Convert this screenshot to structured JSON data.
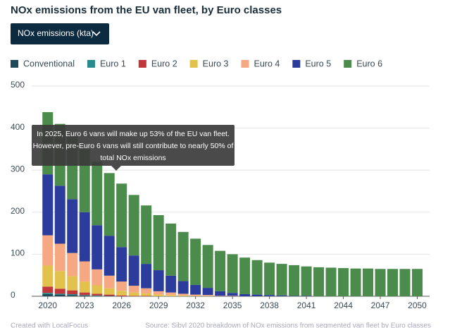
{
  "ui": {
    "title": "NOx emissions from the EU van fleet, by Euro classes",
    "dropdown": "NOx emissions (kta)"
  },
  "chart_data": {
    "type": "bar",
    "stacked": true,
    "x": [
      2020,
      2021,
      2022,
      2023,
      2024,
      2025,
      2026,
      2027,
      2028,
      2029,
      2030,
      2031,
      2032,
      2033,
      2034,
      2035,
      2036,
      2037,
      2038,
      2039,
      2040,
      2041,
      2042,
      2043,
      2044,
      2045,
      2046,
      2047,
      2048,
      2049,
      2050
    ],
    "xlim": [
      2018.7,
      2051
    ],
    "xticks": [
      2020,
      2023,
      2026,
      2029,
      2032,
      2035,
      2038,
      2041,
      2044,
      2047,
      2050
    ],
    "ylim": [
      0,
      500
    ],
    "yticks": [
      0,
      100,
      200,
      300,
      400,
      500
    ],
    "grid": true,
    "legend": "top-left",
    "annotation": [
      "In 2025, Euro 6 vans will make up 53% of the EU van fleet.",
      "However, pre-Euro 6 vans will still contribute to nearly 50% of",
      "total NOx emissions"
    ],
    "series": [
      {
        "name": "Conventional",
        "color": "#1f4a5c",
        "values": [
          5,
          4,
          3,
          2,
          1,
          1,
          0,
          0,
          0,
          0,
          0,
          0,
          0,
          0,
          0,
          0,
          0,
          0,
          0,
          0,
          0,
          0,
          0,
          0,
          0,
          0,
          0,
          0,
          0,
          0,
          0
        ]
      },
      {
        "name": "Euro 1",
        "color": "#2a8b8c",
        "values": [
          3,
          2,
          2,
          1,
          1,
          0,
          0,
          0,
          0,
          0,
          0,
          0,
          0,
          0,
          0,
          0,
          0,
          0,
          0,
          0,
          0,
          0,
          0,
          0,
          0,
          0,
          0,
          0,
          0,
          0,
          0
        ]
      },
      {
        "name": "Euro 2",
        "color": "#c2373a",
        "values": [
          15,
          12,
          9,
          6,
          4,
          3,
          2,
          1,
          1,
          0,
          0,
          0,
          0,
          0,
          0,
          0,
          0,
          0,
          0,
          0,
          0,
          0,
          0,
          0,
          0,
          0,
          0,
          0,
          0,
          0,
          0
        ]
      },
      {
        "name": "Euro 3",
        "color": "#e2c24d",
        "values": [
          50,
          42,
          34,
          26,
          20,
          15,
          11,
          8,
          6,
          4,
          3,
          2,
          1,
          1,
          0,
          0,
          0,
          0,
          0,
          0,
          0,
          0,
          0,
          0,
          0,
          0,
          0,
          0,
          0,
          0,
          0
        ]
      },
      {
        "name": "Euro 4",
        "color": "#f5a882",
        "values": [
          72,
          65,
          55,
          48,
          38,
          30,
          22,
          16,
          12,
          8,
          6,
          4,
          3,
          2,
          1,
          1,
          0,
          0,
          0,
          0,
          0,
          0,
          0,
          0,
          0,
          0,
          0,
          0,
          0,
          0,
          0
        ]
      },
      {
        "name": "Euro 5",
        "color": "#2b3c9c",
        "values": [
          145,
          138,
          128,
          117,
          105,
          95,
          82,
          72,
          58,
          50,
          40,
          30,
          23,
          17,
          11,
          7,
          5,
          4,
          3,
          2,
          1,
          1,
          0,
          0,
          0,
          0,
          0,
          0,
          0,
          0,
          0
        ]
      },
      {
        "name": "Euro 6",
        "color": "#4b8b4b",
        "values": [
          148,
          147,
          149,
          150,
          151,
          149,
          151,
          144,
          139,
          131,
          124,
          117,
          110,
          102,
          96,
          92,
          87,
          82,
          77,
          75,
          73,
          70,
          69,
          68,
          67,
          66,
          66,
          65,
          65,
          65,
          65
        ]
      }
    ]
  },
  "footer": {
    "credit": "Created with LocalFocus",
    "source": "Source: Sibyl 2020 breakdown of NOx emissions from segmented van fleet by Euro classes"
  }
}
